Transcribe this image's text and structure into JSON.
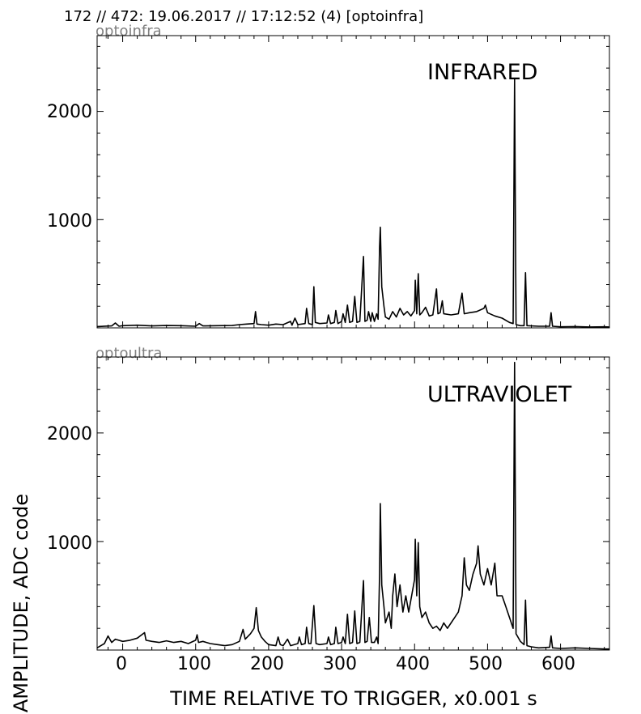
{
  "header": {
    "title": "172 // 472:   19.06.2017 // 17:12:52 (4)  [optoinfra]"
  },
  "ylabel": "AMPLITUDE,  ADC code",
  "xlabel": "TIME RELATIVE TO TRIGGER,   x0.001 s",
  "xticks": [
    "0",
    "100",
    "200",
    "300",
    "400",
    "500",
    "600"
  ],
  "yticks": [
    "1000",
    "2000"
  ],
  "chart_data": [
    {
      "type": "line",
      "panel_label": "optoinfra",
      "channel": "INFRARED",
      "xlim": [
        -35,
        667
      ],
      "ylim": [
        0,
        2700
      ],
      "series": [
        {
          "color": "#000000",
          "points": [
            [
              -35,
              12
            ],
            [
              -15,
              18
            ],
            [
              -10,
              45
            ],
            [
              -5,
              15
            ],
            [
              0,
              20
            ],
            [
              20,
              25
            ],
            [
              40,
              18
            ],
            [
              60,
              22
            ],
            [
              80,
              20
            ],
            [
              100,
              15
            ],
            [
              105,
              40
            ],
            [
              110,
              18
            ],
            [
              130,
              20
            ],
            [
              150,
              22
            ],
            [
              160,
              30
            ],
            [
              170,
              35
            ],
            [
              180,
              40
            ],
            [
              182,
              150
            ],
            [
              184,
              35
            ],
            [
              190,
              30
            ],
            [
              200,
              25
            ],
            [
              210,
              35
            ],
            [
              220,
              30
            ],
            [
              230,
              60
            ],
            [
              232,
              25
            ],
            [
              236,
              90
            ],
            [
              240,
              30
            ],
            [
              250,
              40
            ],
            [
              252,
              180
            ],
            [
              255,
              40
            ],
            [
              260,
              30
            ],
            [
              262,
              380
            ],
            [
              264,
              50
            ],
            [
              270,
              40
            ],
            [
              280,
              45
            ],
            [
              282,
              120
            ],
            [
              285,
              40
            ],
            [
              290,
              50
            ],
            [
              292,
              160
            ],
            [
              295,
              40
            ],
            [
              300,
              60
            ],
            [
              302,
              130
            ],
            [
              305,
              50
            ],
            [
              308,
              210
            ],
            [
              311,
              50
            ],
            [
              315,
              60
            ],
            [
              318,
              290
            ],
            [
              321,
              50
            ],
            [
              325,
              60
            ],
            [
              330,
              660
            ],
            [
              332,
              60
            ],
            [
              335,
              70
            ],
            [
              337,
              150
            ],
            [
              340,
              60
            ],
            [
              342,
              140
            ],
            [
              345,
              60
            ],
            [
              348,
              130
            ],
            [
              350,
              80
            ],
            [
              352,
              750
            ],
            [
              353,
              930
            ],
            [
              355,
              380
            ],
            [
              358,
              200
            ],
            [
              360,
              100
            ],
            [
              365,
              80
            ],
            [
              370,
              150
            ],
            [
              375,
              100
            ],
            [
              380,
              180
            ],
            [
              385,
              120
            ],
            [
              390,
              150
            ],
            [
              395,
              110
            ],
            [
              400,
              160
            ],
            [
              401,
              440
            ],
            [
              403,
              130
            ],
            [
              405,
              500
            ],
            [
              407,
              120
            ],
            [
              410,
              140
            ],
            [
              415,
              190
            ],
            [
              420,
              110
            ],
            [
              425,
              120
            ],
            [
              430,
              360
            ],
            [
              432,
              130
            ],
            [
              435,
              140
            ],
            [
              438,
              250
            ],
            [
              440,
              130
            ],
            [
              450,
              120
            ],
            [
              460,
              130
            ],
            [
              465,
              320
            ],
            [
              468,
              130
            ],
            [
              475,
              140
            ],
            [
              485,
              150
            ],
            [
              495,
              180
            ],
            [
              497,
              210
            ],
            [
              500,
              140
            ],
            [
              510,
              110
            ],
            [
              520,
              90
            ],
            [
              530,
              50
            ],
            [
              535,
              40
            ],
            [
              537,
              2300
            ],
            [
              539,
              30
            ],
            [
              545,
              20
            ],
            [
              550,
              20
            ],
            [
              552,
              510
            ],
            [
              554,
              20
            ],
            [
              570,
              15
            ],
            [
              585,
              15
            ],
            [
              587,
              140
            ],
            [
              589,
              15
            ],
            [
              600,
              10
            ],
            [
              620,
              12
            ],
            [
              640,
              8
            ],
            [
              660,
              10
            ],
            [
              667,
              8
            ]
          ]
        }
      ]
    },
    {
      "type": "line",
      "panel_label": "optoultra",
      "channel": "ULTRAVIOLET",
      "xlim": [
        -35,
        667
      ],
      "ylim": [
        0,
        2700
      ],
      "series": [
        {
          "color": "#000000",
          "points": [
            [
              -35,
              20
            ],
            [
              -25,
              60
            ],
            [
              -20,
              130
            ],
            [
              -15,
              70
            ],
            [
              -10,
              100
            ],
            [
              0,
              80
            ],
            [
              10,
              90
            ],
            [
              20,
              110
            ],
            [
              30,
              160
            ],
            [
              32,
              90
            ],
            [
              40,
              80
            ],
            [
              50,
              70
            ],
            [
              60,
              85
            ],
            [
              70,
              70
            ],
            [
              80,
              80
            ],
            [
              90,
              60
            ],
            [
              100,
              90
            ],
            [
              102,
              140
            ],
            [
              104,
              70
            ],
            [
              110,
              80
            ],
            [
              120,
              60
            ],
            [
              130,
              50
            ],
            [
              140,
              40
            ],
            [
              150,
              50
            ],
            [
              160,
              80
            ],
            [
              165,
              190
            ],
            [
              168,
              100
            ],
            [
              175,
              150
            ],
            [
              180,
              200
            ],
            [
              183,
              390
            ],
            [
              186,
              180
            ],
            [
              190,
              120
            ],
            [
              195,
              80
            ],
            [
              200,
              50
            ],
            [
              210,
              40
            ],
            [
              213,
              120
            ],
            [
              216,
              50
            ],
            [
              220,
              40
            ],
            [
              226,
              100
            ],
            [
              230,
              40
            ],
            [
              240,
              60
            ],
            [
              242,
              120
            ],
            [
              245,
              50
            ],
            [
              250,
              60
            ],
            [
              252,
              210
            ],
            [
              255,
              60
            ],
            [
              258,
              60
            ],
            [
              262,
              410
            ],
            [
              265,
              60
            ],
            [
              270,
              50
            ],
            [
              280,
              60
            ],
            [
              282,
              120
            ],
            [
              285,
              50
            ],
            [
              290,
              60
            ],
            [
              292,
              210
            ],
            [
              295,
              60
            ],
            [
              300,
              70
            ],
            [
              302,
              120
            ],
            [
              305,
              60
            ],
            [
              308,
              330
            ],
            [
              311,
              60
            ],
            [
              315,
              70
            ],
            [
              318,
              360
            ],
            [
              321,
              60
            ],
            [
              325,
              70
            ],
            [
              330,
              640
            ],
            [
              332,
              70
            ],
            [
              335,
              80
            ],
            [
              338,
              300
            ],
            [
              341,
              70
            ],
            [
              345,
              70
            ],
            [
              348,
              120
            ],
            [
              350,
              60
            ],
            [
              352,
              700
            ],
            [
              353,
              1350
            ],
            [
              355,
              600
            ],
            [
              358,
              400
            ],
            [
              360,
              250
            ],
            [
              365,
              350
            ],
            [
              368,
              200
            ],
            [
              370,
              500
            ],
            [
              373,
              700
            ],
            [
              376,
              400
            ],
            [
              380,
              600
            ],
            [
              384,
              350
            ],
            [
              388,
              500
            ],
            [
              392,
              350
            ],
            [
              396,
              500
            ],
            [
              400,
              650
            ],
            [
              401,
              1020
            ],
            [
              403,
              500
            ],
            [
              405,
              990
            ],
            [
              407,
              400
            ],
            [
              410,
              300
            ],
            [
              415,
              350
            ],
            [
              420,
              250
            ],
            [
              425,
              200
            ],
            [
              430,
              220
            ],
            [
              435,
              180
            ],
            [
              440,
              250
            ],
            [
              445,
              200
            ],
            [
              450,
              250
            ],
            [
              455,
              300
            ],
            [
              460,
              350
            ],
            [
              465,
              500
            ],
            [
              468,
              850
            ],
            [
              471,
              600
            ],
            [
              475,
              550
            ],
            [
              480,
              700
            ],
            [
              485,
              800
            ],
            [
              487,
              960
            ],
            [
              490,
              700
            ],
            [
              495,
              600
            ],
            [
              500,
              750
            ],
            [
              505,
              600
            ],
            [
              510,
              800
            ],
            [
              513,
              500
            ],
            [
              520,
              500
            ],
            [
              525,
              400
            ],
            [
              530,
              300
            ],
            [
              535,
              200
            ],
            [
              537,
              2650
            ],
            [
              539,
              150
            ],
            [
              545,
              80
            ],
            [
              550,
              50
            ],
            [
              552,
              460
            ],
            [
              554,
              40
            ],
            [
              560,
              30
            ],
            [
              570,
              20
            ],
            [
              585,
              25
            ],
            [
              587,
              130
            ],
            [
              589,
              20
            ],
            [
              600,
              15
            ],
            [
              620,
              20
            ],
            [
              640,
              15
            ],
            [
              660,
              10
            ],
            [
              667,
              10
            ]
          ]
        }
      ]
    }
  ]
}
